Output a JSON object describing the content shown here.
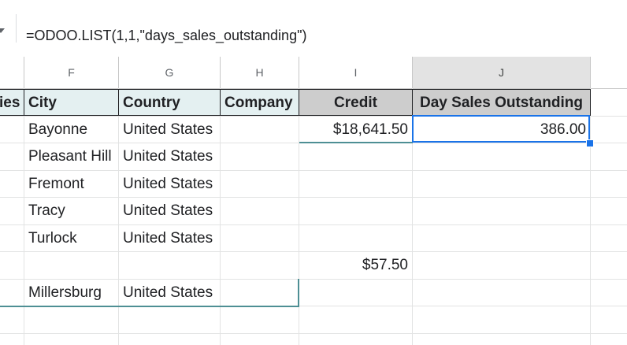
{
  "formula_bar": {
    "formula": "=ODOO.LIST(1,1,\"days_sales_outstanding\")"
  },
  "columns": [
    {
      "letter": ""
    },
    {
      "letter": "F"
    },
    {
      "letter": "G"
    },
    {
      "letter": "H"
    },
    {
      "letter": "I"
    },
    {
      "letter": "J"
    }
  ],
  "headers": {
    "e_partial": "ies",
    "city": "City",
    "country": "Country",
    "company": "Company",
    "credit": "Credit",
    "dso": "Day Sales Outstanding"
  },
  "rows": [
    {
      "city": "Bayonne",
      "country": "United States",
      "credit": "$18,641.50",
      "dso": "386.00"
    },
    {
      "city": "Pleasant Hill",
      "country": "United States",
      "credit": "",
      "dso": ""
    },
    {
      "city": "Fremont",
      "country": "United States",
      "credit": "",
      "dso": ""
    },
    {
      "city": "Tracy",
      "country": "United States",
      "credit": "",
      "dso": ""
    },
    {
      "city": "Turlock",
      "country": "United States",
      "credit": "",
      "dso": ""
    },
    {
      "city": "",
      "country": "",
      "credit": "$57.50",
      "dso": ""
    },
    {
      "city": "Millersburg",
      "country": "United States",
      "credit": "",
      "dso": ""
    }
  ],
  "colors": {
    "selection": "#1a73e8",
    "header_teal": "#e4f0f1",
    "header_gray": "#cdcdcd",
    "band": "#4e8f94"
  }
}
